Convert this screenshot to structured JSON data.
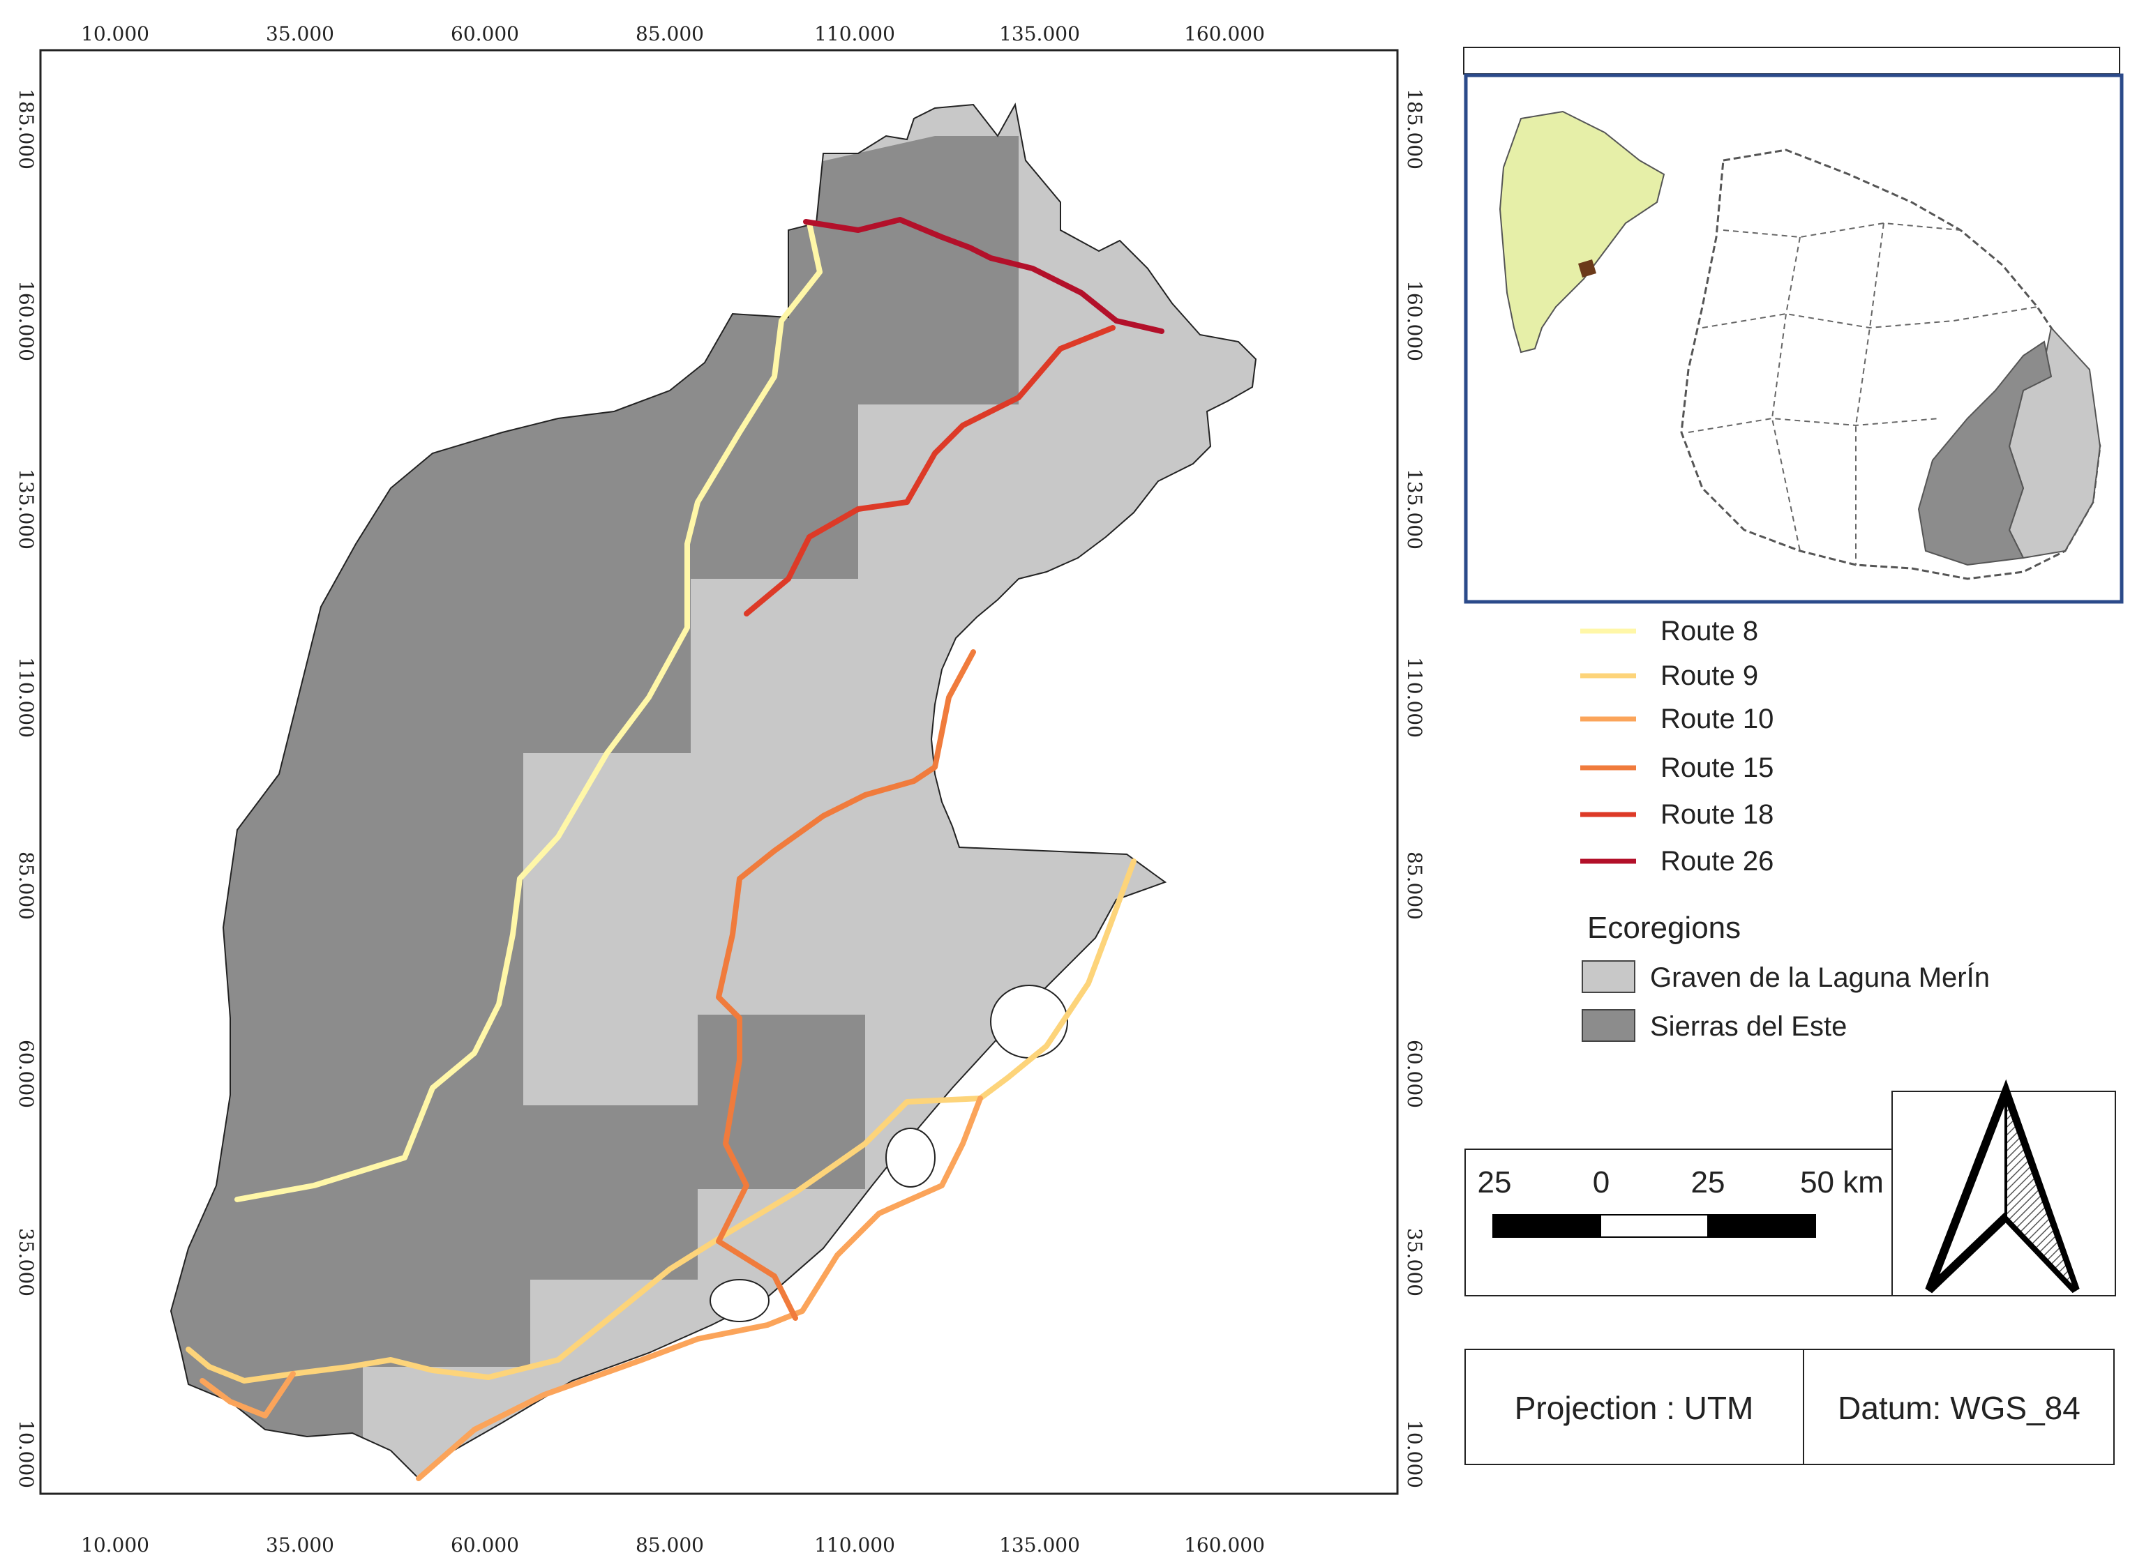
{
  "map": {
    "x_ticks": [
      "10.000",
      "35.000",
      "60.000",
      "85.000",
      "110.000",
      "135.000",
      "160.000"
    ],
    "y_ticks": [
      "185.000",
      "160.000",
      "135.000",
      "110.000",
      "85.000",
      "60.000",
      "35.000",
      "10.000"
    ]
  },
  "legend": {
    "routes": [
      {
        "label": "Route 8",
        "color": "#fff7a8"
      },
      {
        "label": "Route 9",
        "color": "#fdd47a"
      },
      {
        "label": "Route 10",
        "color": "#fba45a"
      },
      {
        "label": "Route 15",
        "color": "#f07b3c"
      },
      {
        "label": "Route 18",
        "color": "#dd3a27"
      },
      {
        "label": "Route 26",
        "color": "#b3102a"
      }
    ],
    "ecoregions_heading": "Ecoregions",
    "ecoregions": [
      {
        "label": "Graven de la Laguna MerÍn",
        "color": "#c8c8c8"
      },
      {
        "label": "Sierras del Este",
        "color": "#8c8c8c"
      }
    ]
  },
  "scale_bar": {
    "labels": [
      "25",
      "0",
      "25",
      "50 km"
    ]
  },
  "projection": {
    "label": "Projection  : UTM"
  },
  "datum": {
    "label": "Datum: WGS_84"
  },
  "colors": {
    "graven": "#c8c8c8",
    "sierras": "#8c8c8c",
    "inset_border": "#2b4a8a",
    "south_america": "#e6efa8"
  },
  "icons": [
    "north-arrow-icon"
  ]
}
